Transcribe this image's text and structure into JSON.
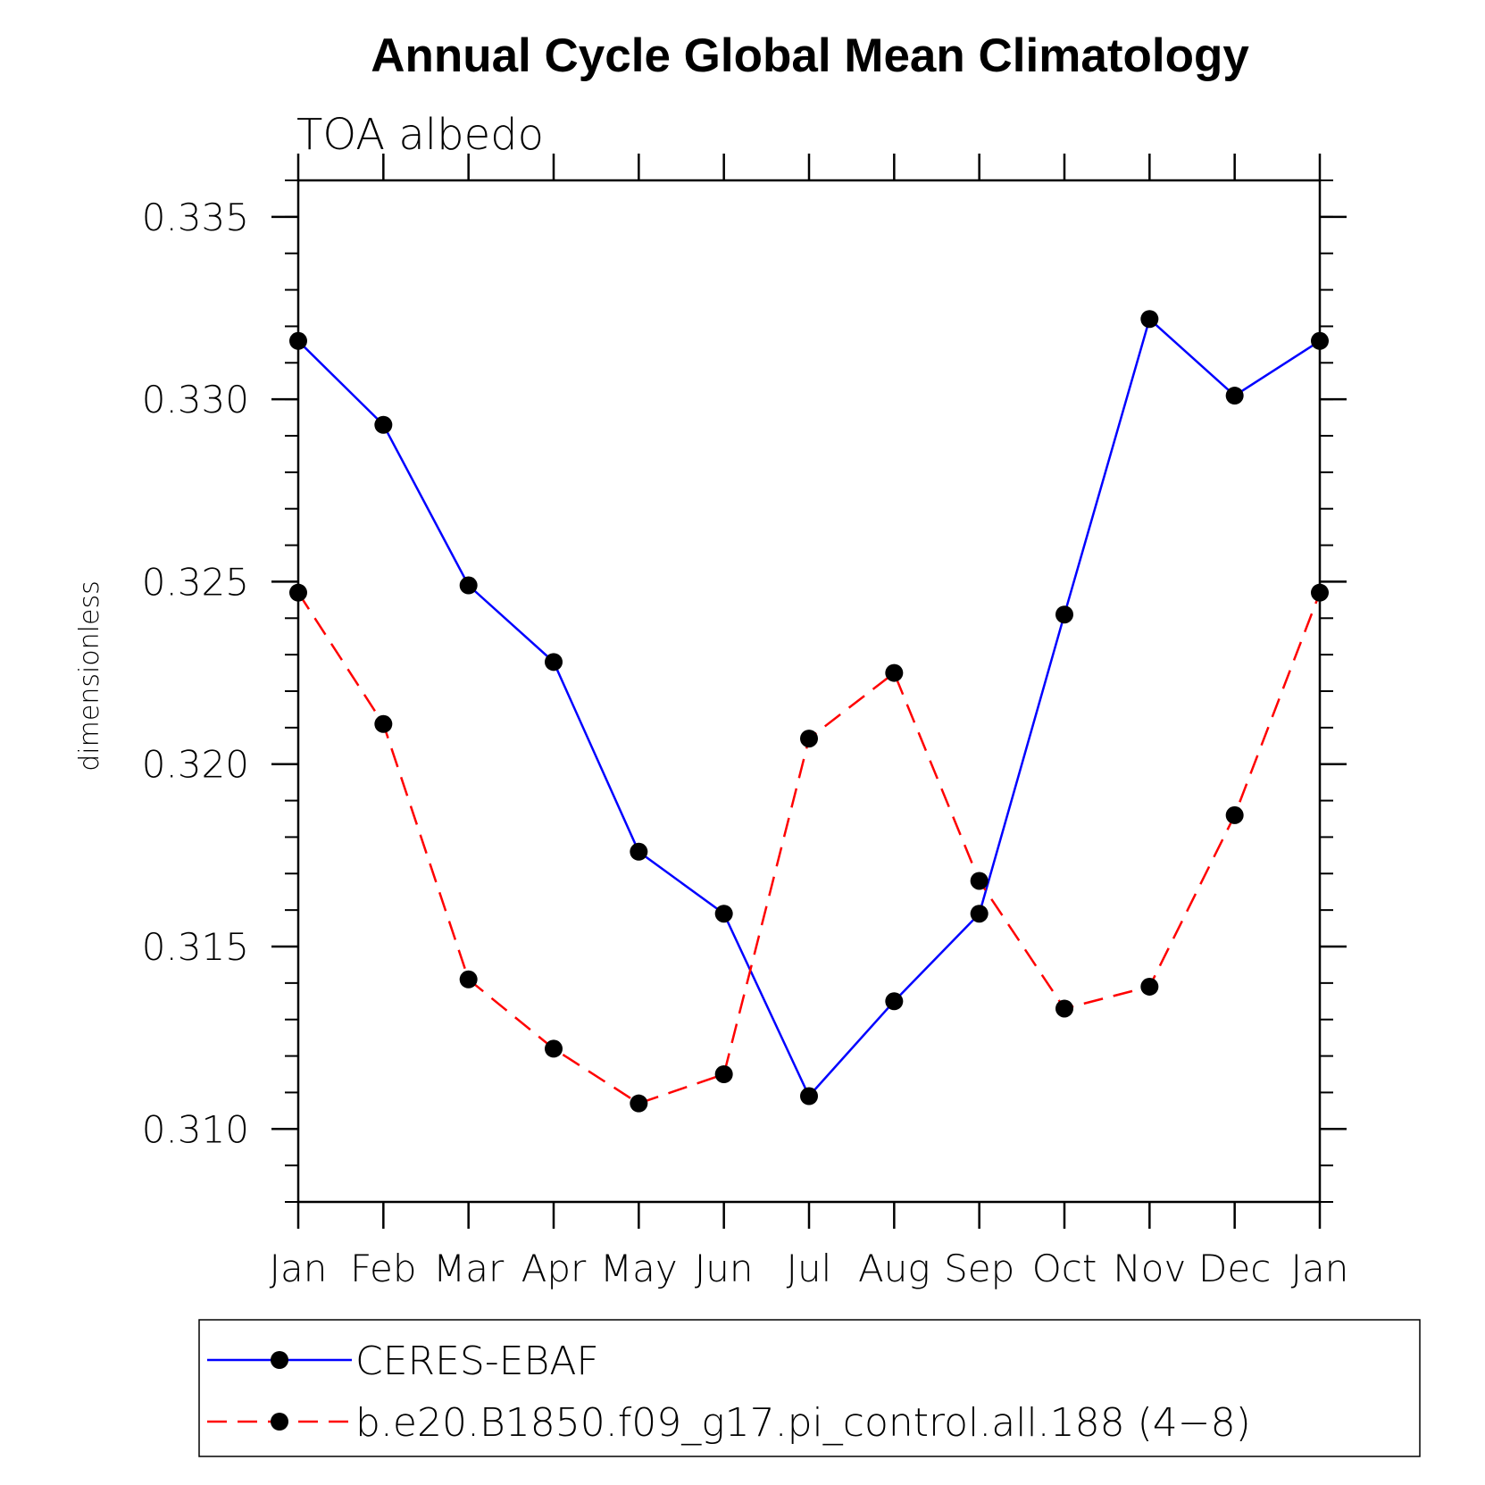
{
  "chart_data": {
    "type": "line",
    "title": "Annual Cycle Global Mean Climatology",
    "subtitle": "TOA albedo",
    "xlabel": "",
    "ylabel": "dimensionless",
    "categories": [
      "Jan",
      "Feb",
      "Mar",
      "Apr",
      "May",
      "Jun",
      "Jul",
      "Aug",
      "Sep",
      "Oct",
      "Nov",
      "Dec",
      "Jan"
    ],
    "ylim": [
      0.308,
      0.336
    ],
    "yticks": [
      0.31,
      0.315,
      0.32,
      0.325,
      0.33,
      0.335
    ],
    "ytick_labels": [
      "0.310",
      "0.315",
      "0.320",
      "0.325",
      "0.330",
      "0.335"
    ],
    "y_minor_step": 0.001,
    "grid": false,
    "legend_position": "bottom",
    "series": [
      {
        "name": "CERES-EBAF",
        "color": "#0000ff",
        "line_style": "solid",
        "marker": "filled-circle",
        "values": [
          0.3316,
          0.3293,
          0.3249,
          0.3228,
          0.3176,
          0.3159,
          0.3109,
          0.3135,
          0.3159,
          0.3241,
          0.3322,
          0.3301,
          0.3316
        ]
      },
      {
        "name": "b.e20.B1850.f09_g17.pi_control.all.188 (4−8)",
        "color": "#ff0000",
        "line_style": "dashed",
        "marker": "filled-circle",
        "values": [
          0.3247,
          0.3211,
          0.3141,
          0.3122,
          0.3107,
          0.3115,
          0.3207,
          0.3225,
          0.3168,
          0.3133,
          0.3139,
          0.3186,
          0.3247
        ]
      }
    ]
  }
}
